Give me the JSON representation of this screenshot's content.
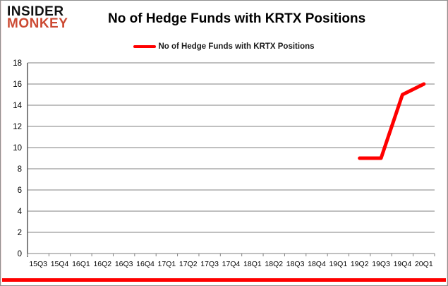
{
  "header": {
    "logo_line1": "INSIDER",
    "logo_line2": "MONKEY",
    "title": "No of Hedge Funds with KRTX Positions"
  },
  "legend": {
    "label": "No of Hedge Funds with KRTX Positions"
  },
  "colors": {
    "series_line": "#ff0000",
    "logo_accent": "#cc4a33",
    "gridline": "#808080",
    "y_axis_line": "#404040",
    "bottom_bar": "#fe0000",
    "text": "#000000"
  },
  "chart_data": {
    "type": "line",
    "title": "No of Hedge Funds with KRTX Positions",
    "categories": [
      "15Q3",
      "15Q4",
      "16Q1",
      "16Q2",
      "16Q3",
      "16Q4",
      "17Q1",
      "17Q2",
      "17Q3",
      "17Q4",
      "18Q1",
      "18Q2",
      "18Q3",
      "18Q4",
      "19Q1",
      "19Q2",
      "19Q3",
      "19Q4",
      "20Q1"
    ],
    "series": [
      {
        "name": "No of Hedge Funds with KRTX Positions",
        "color": "#ff0000",
        "values": [
          null,
          null,
          null,
          null,
          null,
          null,
          null,
          null,
          null,
          null,
          null,
          null,
          null,
          null,
          null,
          9,
          9,
          15,
          16
        ]
      }
    ],
    "xlabel": "",
    "ylabel": "",
    "ylim": [
      0,
      18
    ],
    "ytick_step": 2,
    "grid": true,
    "legend_position": "top"
  }
}
